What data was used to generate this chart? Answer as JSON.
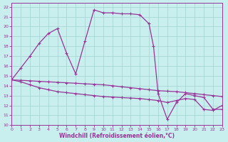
{
  "xlabel": "Windchill (Refroidissement éolien,°C)",
  "xlim": [
    0,
    23
  ],
  "ylim": [
    10,
    22.4
  ],
  "xticks": [
    0,
    1,
    2,
    3,
    4,
    5,
    6,
    7,
    8,
    9,
    10,
    11,
    12,
    13,
    14,
    15,
    16,
    17,
    18,
    19,
    20,
    21,
    22,
    23
  ],
  "yticks": [
    10,
    11,
    12,
    13,
    14,
    15,
    16,
    17,
    18,
    19,
    20,
    21,
    22
  ],
  "bg": "#c8eeee",
  "lc": "#993399",
  "gc": "#a0d4d0",
  "curve1_x": [
    0,
    1,
    2,
    3,
    4,
    5,
    6,
    7,
    8,
    9,
    10,
    11,
    12,
    13,
    14,
    15,
    15.5,
    16,
    17,
    18,
    19,
    20,
    21,
    22,
    23
  ],
  "curve1_y": [
    14.6,
    15.8,
    17.0,
    18.3,
    19.3,
    19.8,
    17.3,
    15.2,
    18.5,
    21.7,
    21.4,
    21.4,
    21.3,
    21.3,
    21.2,
    20.3,
    18.0,
    13.2,
    10.6,
    12.3,
    13.2,
    13.0,
    12.8,
    11.6,
    11.6
  ],
  "curve2_x": [
    0,
    1,
    2,
    3,
    4,
    5,
    6,
    7,
    8,
    9,
    10,
    11,
    12,
    13,
    14,
    15,
    16,
    17,
    18,
    19,
    20,
    21,
    22,
    23
  ],
  "curve2_y": [
    14.6,
    14.55,
    14.5,
    14.45,
    14.4,
    14.35,
    14.3,
    14.25,
    14.2,
    14.15,
    14.1,
    14.0,
    13.9,
    13.8,
    13.7,
    13.6,
    13.5,
    13.45,
    13.4,
    13.3,
    13.2,
    13.1,
    13.0,
    12.9
  ],
  "curve3_x": [
    0,
    1,
    2,
    3,
    4,
    5,
    6,
    7,
    8,
    9,
    10,
    11,
    12,
    13,
    14,
    15,
    16,
    17,
    18,
    19,
    20,
    21,
    22,
    23
  ],
  "curve3_y": [
    14.6,
    14.4,
    14.1,
    13.8,
    13.6,
    13.4,
    13.3,
    13.2,
    13.1,
    13.0,
    12.9,
    12.85,
    12.8,
    12.75,
    12.7,
    12.6,
    12.5,
    12.3,
    12.5,
    12.7,
    12.6,
    11.6,
    11.5,
    12.0
  ]
}
